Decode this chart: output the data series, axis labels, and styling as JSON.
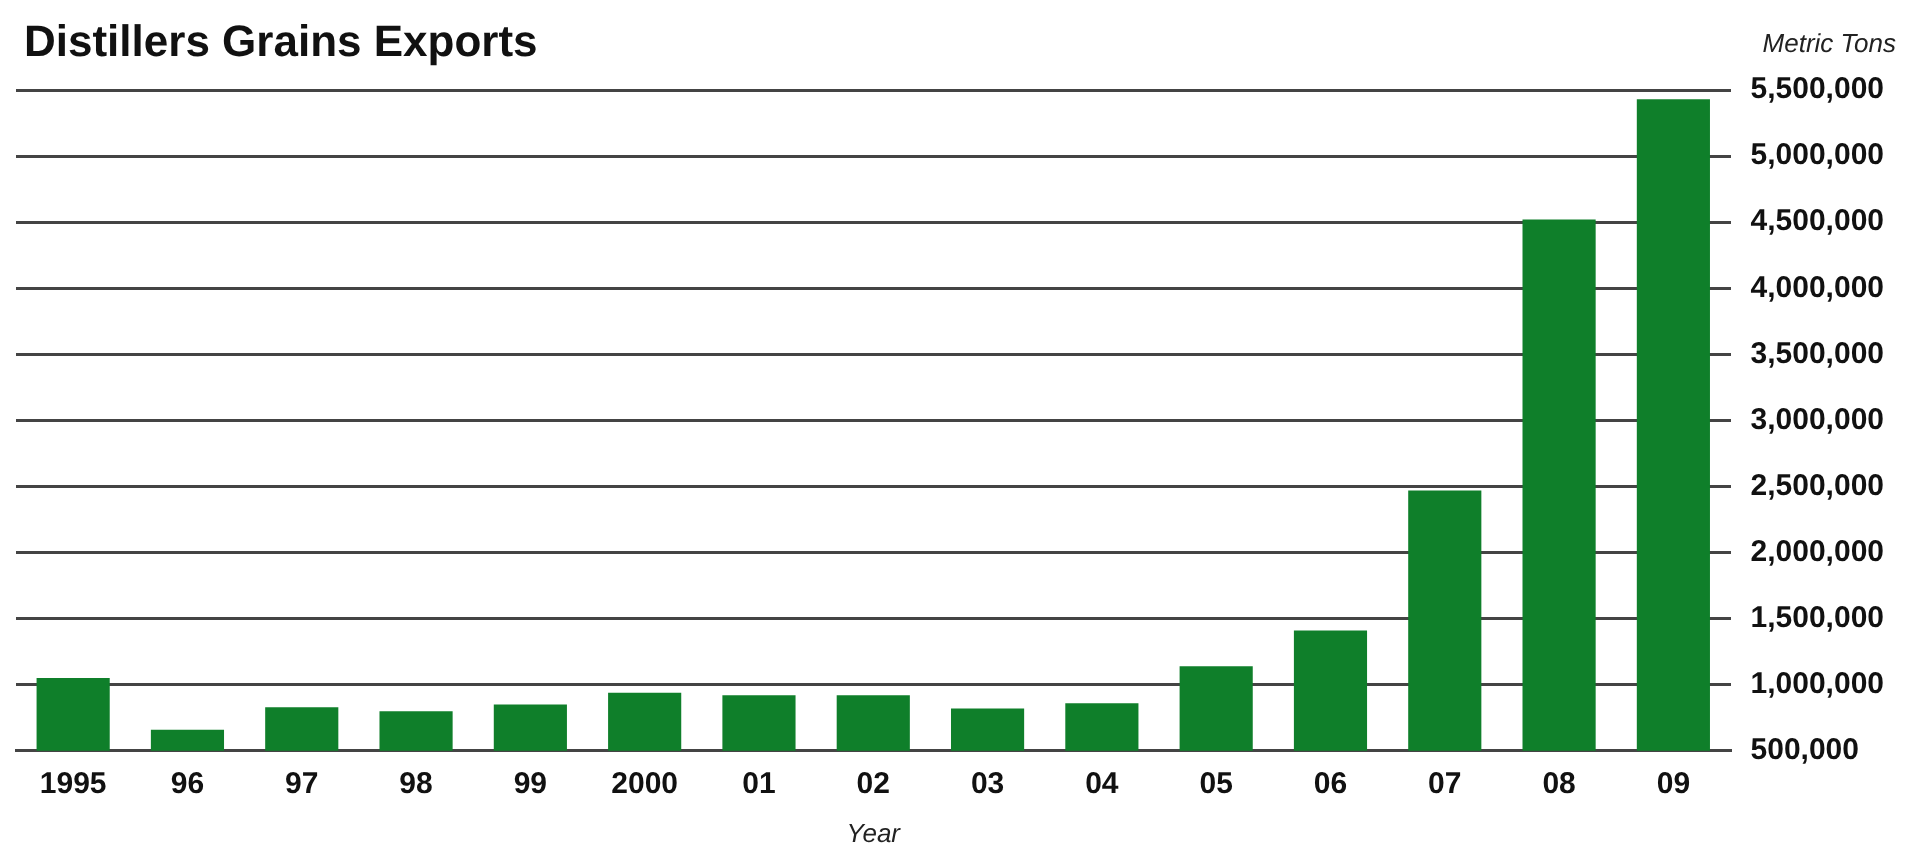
{
  "chart_data": {
    "type": "bar",
    "title": "Distillers Grains Exports",
    "xlabel": "Year",
    "ylabel": "Metric Tons",
    "categories": [
      "1995",
      "96",
      "97",
      "98",
      "99",
      "2000",
      "01",
      "02",
      "03",
      "04",
      "05",
      "06",
      "07",
      "08",
      "09"
    ],
    "values": [
      1050000,
      660000,
      830000,
      800000,
      850000,
      940000,
      920000,
      920000,
      820000,
      860000,
      1140000,
      1410000,
      2470000,
      4520000,
      5430000
    ],
    "color": "#0f7f2a",
    "ylim": [
      500000,
      5500000
    ],
    "yticks": [
      {
        "value": 500000,
        "label": "500,000"
      },
      {
        "value": 1000000,
        "label": "1,000,000"
      },
      {
        "value": 1500000,
        "label": "1,500,000"
      },
      {
        "value": 2000000,
        "label": "2,000,000"
      },
      {
        "value": 2500000,
        "label": "2,500,000"
      },
      {
        "value": 3000000,
        "label": "3,000,000"
      },
      {
        "value": 3500000,
        "label": "3,500,000"
      },
      {
        "value": 4000000,
        "label": "4,000,000"
      },
      {
        "value": 4500000,
        "label": "4,500,000"
      },
      {
        "value": 5000000,
        "label": "5,000,000"
      },
      {
        "value": 5500000,
        "label": "5,500,000"
      }
    ],
    "grid": "y",
    "legend": false
  }
}
